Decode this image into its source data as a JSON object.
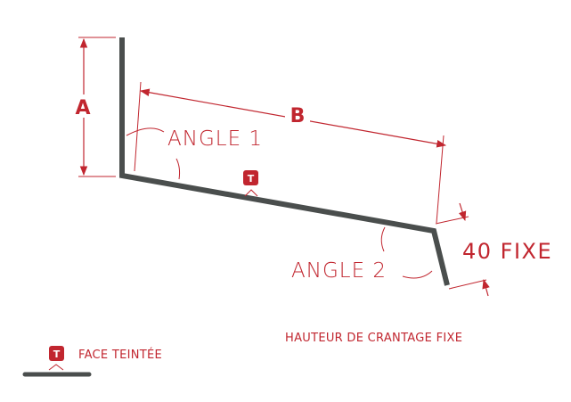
{
  "diagram": {
    "label_a": "A",
    "label_b": "B",
    "angle_1": "ANGLE 1",
    "angle_2": "ANGLE 2",
    "fixed_height": "40 FIXE",
    "crimp_note": "HAUTEUR DE CRANTAGE FIXE",
    "tinted_badge": "T",
    "legend_label": "FACE TEINTÉE",
    "colors": {
      "accent": "#c1262f",
      "profile": "#4a4e4d"
    }
  }
}
